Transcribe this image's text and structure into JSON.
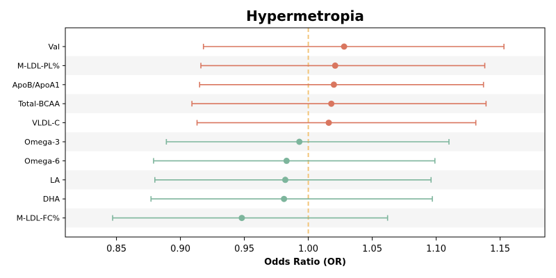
{
  "chart_data": {
    "type": "forest",
    "title": "Hypermetropia",
    "xlabel": "Odds Ratio (OR)",
    "xlim": [
      0.81,
      1.185
    ],
    "xticks": [
      0.85,
      0.9,
      0.95,
      1.0,
      1.05,
      1.1,
      1.15
    ],
    "xtick_labels": [
      "0.85",
      "0.90",
      "0.95",
      "1.00",
      "1.05",
      "1.10",
      "1.15"
    ],
    "reference_line": 1.0,
    "reference_color": "#f2c57a",
    "grid": false,
    "row_band_color": "#f5f5f5",
    "colors": {
      "positive": "#d9765f",
      "negative": "#7db59c"
    },
    "categories": [
      "Val",
      "M-LDL-PL%",
      "ApoB/ApoA1",
      "Total-BCAA",
      "VLDL-C",
      "Omega-3",
      "Omega-6",
      "LA",
      "DHA",
      "M-LDL-FC%"
    ],
    "or": [
      1.028,
      1.021,
      1.02,
      1.018,
      1.016,
      0.993,
      0.983,
      0.982,
      0.981,
      0.948
    ],
    "lower": [
      0.918,
      0.916,
      0.915,
      0.909,
      0.913,
      0.889,
      0.879,
      0.88,
      0.877,
      0.847
    ],
    "upper": [
      1.153,
      1.138,
      1.137,
      1.139,
      1.131,
      1.11,
      1.099,
      1.096,
      1.097,
      1.062
    ]
  }
}
